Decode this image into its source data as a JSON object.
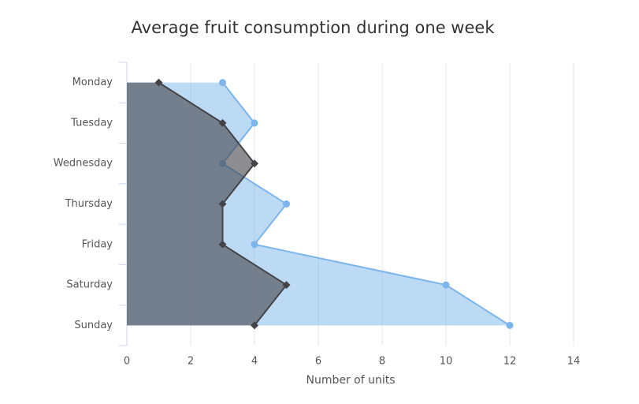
{
  "chart_data": {
    "type": "area",
    "orientation": "horizontal",
    "title": "Average fruit consumption during one week",
    "x_label": "Number of units",
    "categories": [
      "Monday",
      "Tuesday",
      "Wednesday",
      "Thursday",
      "Friday",
      "Saturday",
      "Sunday"
    ],
    "series": [
      {
        "color": "#7cb5ec",
        "marker": "circle",
        "values": [
          3,
          4,
          3,
          5,
          4,
          10,
          12
        ]
      },
      {
        "color": "#434348",
        "marker": "diamond",
        "values": [
          1,
          3,
          4,
          3,
          3,
          5,
          4
        ]
      }
    ],
    "xlim": [
      0,
      14
    ],
    "xticks": [
      0,
      2,
      4,
      6,
      8,
      10,
      12,
      14
    ],
    "grid": true
  }
}
